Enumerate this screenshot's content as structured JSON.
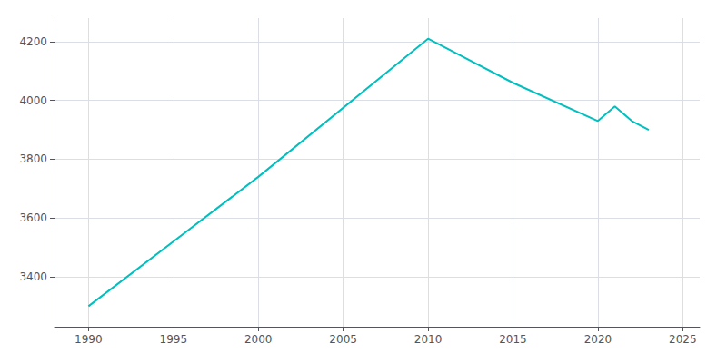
{
  "chart_data": {
    "type": "line",
    "x": [
      1990,
      2000,
      2010,
      2015,
      2020,
      2021,
      2022,
      2023
    ],
    "values": [
      3300,
      3740,
      4210,
      4060,
      3930,
      3980,
      3930,
      3900
    ],
    "color": "#00BFBF",
    "xlim": [
      1988,
      2026
    ],
    "ylim": [
      3230,
      4280
    ],
    "xticks": [
      1990,
      1995,
      2000,
      2005,
      2010,
      2015,
      2020,
      2025
    ],
    "yticks": [
      3400,
      3600,
      3800,
      4000,
      4200
    ],
    "grid": true
  }
}
